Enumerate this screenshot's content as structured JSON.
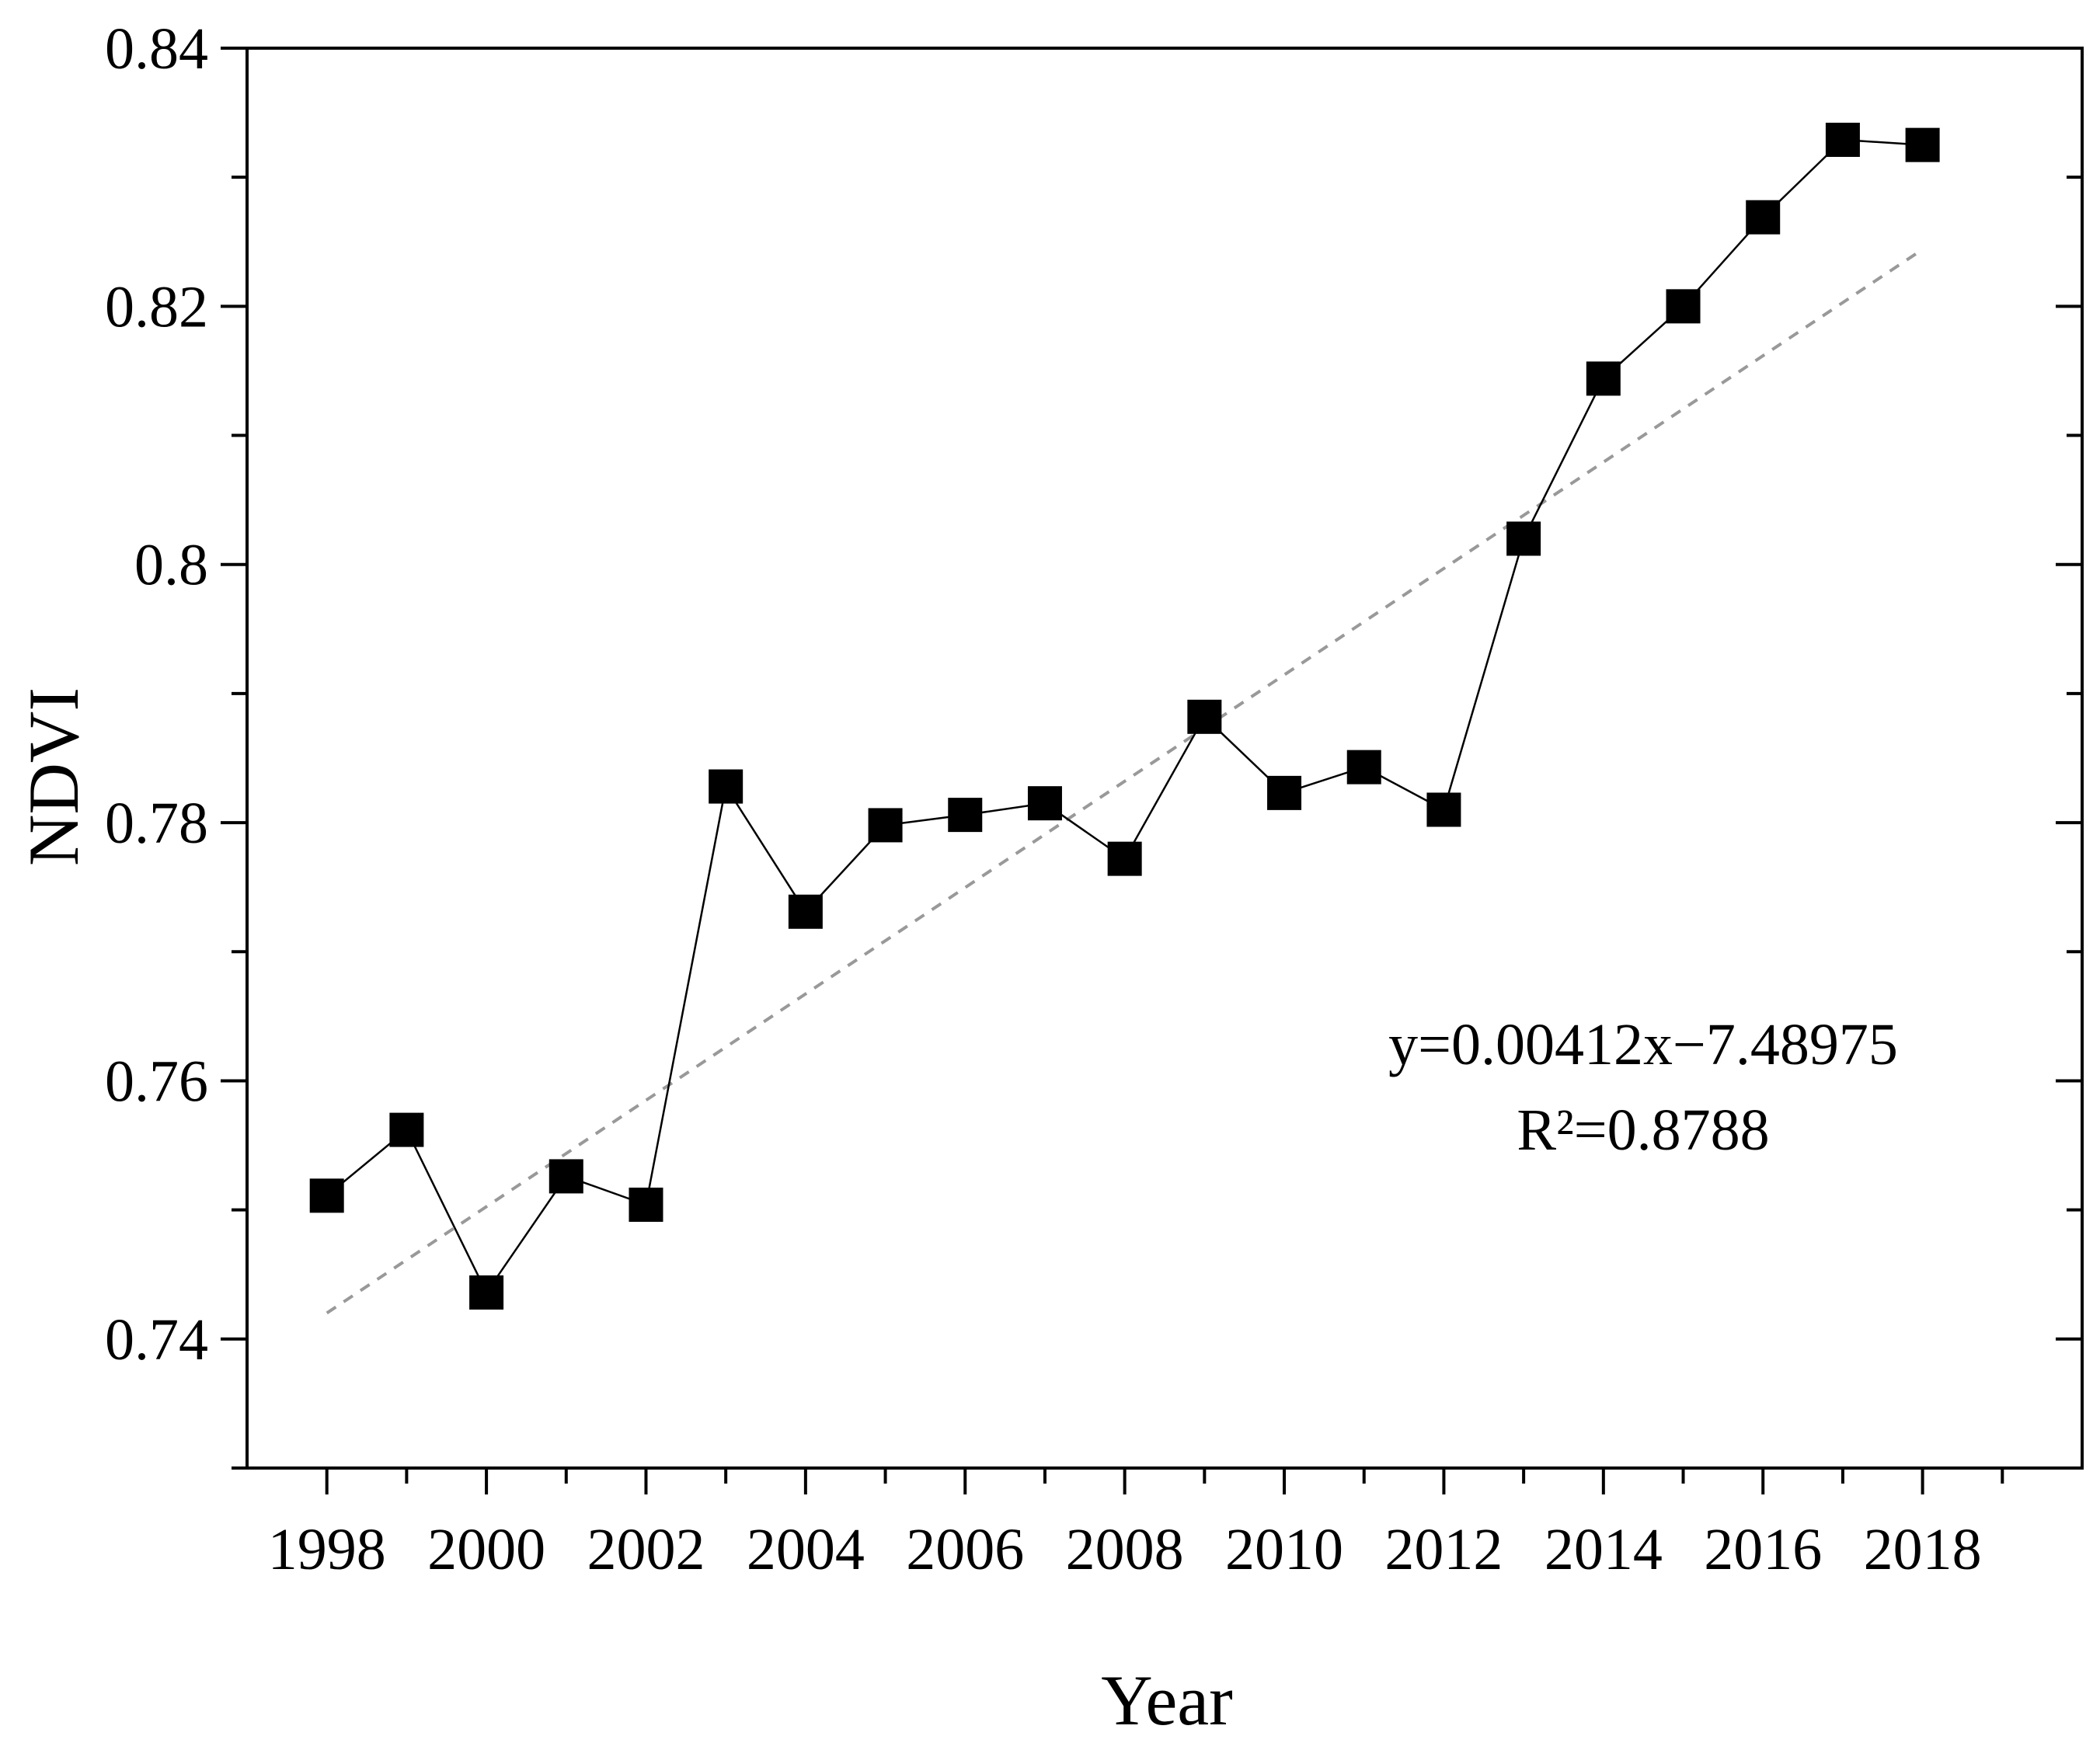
{
  "chart_data": {
    "type": "line",
    "title": "",
    "xlabel": "Year",
    "ylabel": "NDVI",
    "xlim": [
      1997,
      2020
    ],
    "ylim": [
      0.73,
      0.84
    ],
    "x_ticks": [
      1998,
      2000,
      2002,
      2004,
      2006,
      2008,
      2010,
      2012,
      2014,
      2016,
      2018
    ],
    "x_tick_labels": [
      "1998",
      "2000",
      "2002",
      "2004",
      "2006",
      "2008",
      "2010",
      "2012",
      "2014",
      "2016",
      "2018"
    ],
    "y_ticks": [
      0.74,
      0.76,
      0.78,
      0.8,
      0.82,
      0.84
    ],
    "y_tick_labels": [
      "0.74",
      "0.76",
      "0.78",
      "0.8",
      "0.82",
      "0.84"
    ],
    "grid": false,
    "legend": "none",
    "series": [
      {
        "marker": "square",
        "color": "#000000",
        "x": [
          1998,
          1999,
          2000,
          2001,
          2002,
          2003,
          2004,
          2005,
          2006,
          2007,
          2008,
          2009,
          2010,
          2011,
          2012,
          2013,
          2014,
          2015,
          2016,
          2017,
          2018
        ],
        "values": [
          0.7511,
          0.7562,
          0.7436,
          0.7526,
          0.7504,
          0.7828,
          0.7731,
          0.7798,
          0.7806,
          0.7815,
          0.7772,
          0.7882,
          0.7823,
          0.7843,
          0.781,
          0.802,
          0.8144,
          0.82,
          0.8269,
          0.8329,
          0.8325
        ]
      }
    ],
    "trendline": {
      "slope": 0.00412,
      "intercept": -7.48975,
      "x_range": [
        1998,
        2018
      ],
      "color": "#999999",
      "style": "dashed"
    },
    "annotations": [
      "y=0.00412x−7.48975",
      "R²=0.8788"
    ]
  }
}
